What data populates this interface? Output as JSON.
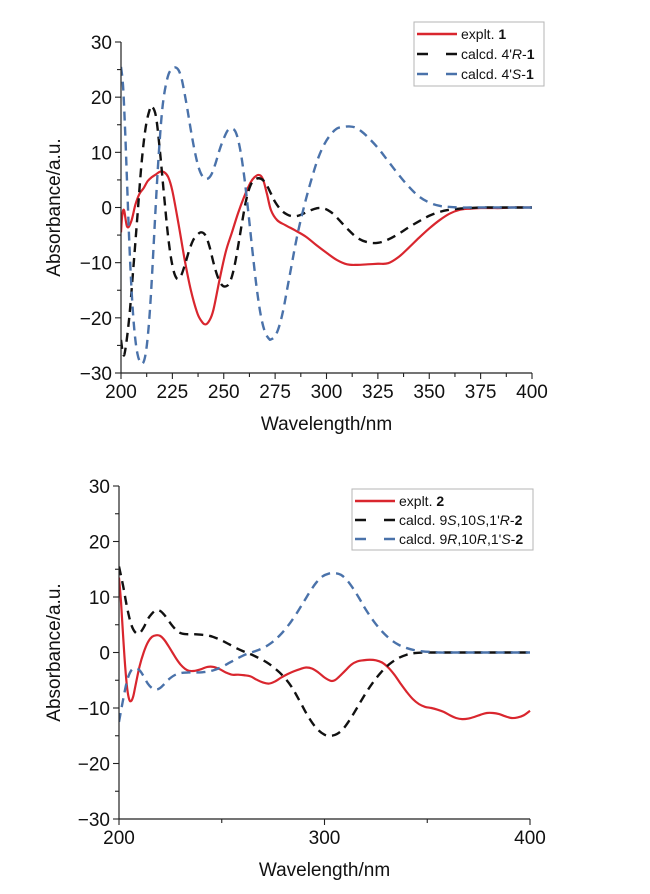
{
  "chart_data": [
    {
      "type": "line",
      "title": "",
      "xlabel": "Wavelength/nm",
      "ylabel": "Absorbance/a.u.",
      "xlim": [
        200,
        400
      ],
      "ylim": [
        -30,
        30
      ],
      "xticks": [
        200,
        225,
        250,
        275,
        300,
        325,
        350,
        375,
        400
      ],
      "xtick_labels": [
        "200",
        "225",
        "250",
        "275",
        "300",
        "325",
        "350",
        "375",
        "400"
      ],
      "xminor_step": 12.5,
      "yticks": [
        -30,
        -20,
        -10,
        0,
        10,
        20,
        30
      ],
      "ytick_labels": [
        "−30",
        "−20",
        "−10",
        "0",
        "10",
        "20",
        "30"
      ],
      "yminor_step": 5,
      "grid": false,
      "legend_position": "top-right",
      "series": [
        {
          "name": "expl",
          "legend": {
            "prefix": "explt. ",
            "parts": [
              {
                "t": "1",
                "b": true
              }
            ]
          },
          "color": "#d9262e",
          "style": "solid",
          "x": [
            200,
            200.6,
            201.5,
            203,
            205,
            207,
            209,
            211,
            213,
            215,
            217,
            219,
            221,
            223,
            225,
            228,
            231,
            234,
            237,
            239,
            241,
            243,
            245,
            248,
            251,
            254,
            257,
            260,
            263,
            265,
            267,
            269,
            271,
            273,
            276,
            280,
            285,
            290,
            295,
            300,
            305,
            310,
            315,
            320,
            325,
            330,
            335,
            340,
            345,
            350,
            355,
            360,
            365,
            370,
            375,
            380,
            385,
            390,
            395,
            400
          ],
          "y": [
            -4.5,
            -1.5,
            -0.5,
            -3.5,
            -2.5,
            0.5,
            2.5,
            3.5,
            4.8,
            5.5,
            6.0,
            6.5,
            6.4,
            5.5,
            3.0,
            -3.0,
            -9.5,
            -15.0,
            -19.0,
            -20.5,
            -21.2,
            -20.5,
            -18.5,
            -13.0,
            -8.0,
            -4.5,
            -1.0,
            2.0,
            4.5,
            5.5,
            5.9,
            5.2,
            2.5,
            -0.5,
            -2.3,
            -3.2,
            -4.2,
            -5.3,
            -6.8,
            -8.2,
            -9.5,
            -10.3,
            -10.4,
            -10.3,
            -10.2,
            -10.1,
            -9.0,
            -7.3,
            -5.5,
            -3.8,
            -2.3,
            -1.1,
            -0.4,
            -0.2,
            -0.1,
            -0.1,
            -0.1,
            0.0,
            0.0,
            0.0
          ]
        },
        {
          "name": "calcd-R",
          "legend": {
            "prefix": "calcd. 4'",
            "parts": [
              {
                "t": "R",
                "i": true
              },
              {
                "t": "-"
              },
              {
                "t": "1",
                "b": true
              }
            ]
          },
          "color": "#111111",
          "style": "dashed",
          "x": [
            200,
            201,
            202,
            204,
            206,
            208,
            210,
            212,
            214,
            215,
            217,
            219,
            221,
            223,
            225,
            227,
            229,
            231,
            233,
            235,
            237,
            239,
            241,
            243,
            245,
            247,
            249,
            251,
            253,
            255,
            257,
            259,
            261,
            263,
            265,
            267,
            269,
            271,
            273,
            275,
            278,
            281,
            284,
            287,
            290,
            293,
            296,
            299,
            302,
            305,
            310,
            315,
            320,
            325,
            330,
            335,
            340,
            345,
            350,
            355,
            360,
            365,
            370,
            375,
            380,
            385,
            390,
            395,
            400
          ],
          "y": [
            -24,
            -26.5,
            -26.0,
            -20.0,
            -11.0,
            -1.5,
            8.0,
            14.5,
            17.8,
            18.3,
            16.5,
            10.0,
            2.0,
            -5.5,
            -10.5,
            -12.8,
            -12.5,
            -10.5,
            -8.0,
            -6.0,
            -5.0,
            -4.5,
            -5.0,
            -7.0,
            -10.0,
            -12.5,
            -14.0,
            -14.3,
            -13.5,
            -11.0,
            -7.0,
            -2.5,
            1.5,
            4.0,
            5.0,
            5.3,
            5.0,
            4.0,
            2.5,
            1.0,
            -0.5,
            -1.3,
            -1.6,
            -1.4,
            -0.9,
            -0.4,
            -0.1,
            -0.2,
            -0.8,
            -1.8,
            -3.8,
            -5.5,
            -6.3,
            -6.4,
            -5.8,
            -4.8,
            -3.6,
            -2.5,
            -1.5,
            -0.8,
            -0.4,
            -0.2,
            -0.1,
            0.0,
            0.0,
            0.0,
            0.0,
            0.0,
            0.0
          ]
        },
        {
          "name": "calcd-S",
          "legend": {
            "prefix": "calcd. 4'",
            "parts": [
              {
                "t": "S",
                "i": true
              },
              {
                "t": "-"
              },
              {
                "t": "1",
                "b": true
              }
            ]
          },
          "color": "#4a72aa",
          "style": "dashed",
          "x": [
            200,
            201,
            202,
            203,
            204,
            205,
            206,
            207,
            208,
            209,
            210,
            211,
            212,
            213,
            214,
            215,
            216,
            217,
            218,
            219,
            220,
            221,
            222,
            223,
            224,
            225,
            226,
            227,
            228,
            229,
            230,
            232,
            234,
            236,
            238,
            240,
            242,
            244,
            246,
            248,
            250,
            252,
            254,
            256,
            258,
            260,
            262,
            264,
            266,
            268,
            270,
            272,
            273,
            275,
            277,
            279,
            281,
            283,
            285,
            287,
            290,
            293,
            296,
            299,
            302,
            305,
            308,
            311,
            314,
            317,
            320,
            325,
            330,
            335,
            340,
            345,
            350,
            355,
            360,
            365,
            370,
            375,
            380,
            385,
            390,
            395,
            400
          ],
          "y": [
            25.5,
            22.0,
            14.0,
            4.0,
            -6.0,
            -14.0,
            -20.0,
            -24.0,
            -26.5,
            -27.8,
            -28.3,
            -28.0,
            -26.5,
            -23.5,
            -19.0,
            -13.0,
            -6.0,
            1.0,
            7.5,
            13.0,
            17.5,
            20.5,
            22.5,
            24.0,
            24.8,
            25.2,
            25.4,
            25.3,
            24.9,
            24.0,
            22.5,
            18.5,
            14.0,
            10.0,
            7.0,
            5.5,
            5.2,
            6.0,
            8.0,
            10.5,
            12.5,
            14.0,
            14.3,
            13.5,
            10.5,
            5.5,
            -1.0,
            -8.0,
            -14.5,
            -19.5,
            -22.5,
            -23.8,
            -23.9,
            -23.3,
            -21.5,
            -18.5,
            -14.5,
            -10.5,
            -6.5,
            -3.0,
            1.5,
            5.5,
            9.0,
            11.5,
            13.2,
            14.3,
            14.6,
            14.7,
            14.5,
            13.8,
            12.8,
            10.8,
            8.4,
            6.0,
            3.8,
            2.0,
            0.9,
            0.3,
            0.1,
            0.0,
            0.0,
            0.0,
            0.0,
            0.0,
            0.0,
            0.0,
            0.0
          ]
        }
      ]
    },
    {
      "type": "line",
      "title": "",
      "xlabel": "Wavelength/nm",
      "ylabel": "Absorbance/a.u.",
      "xlim": [
        200,
        400
      ],
      "ylim": [
        -30,
        30
      ],
      "xticks": [
        200,
        300,
        400
      ],
      "xtick_labels": [
        "200",
        "300",
        "400"
      ],
      "xminor_step": 50,
      "yticks": [
        -30,
        -20,
        -10,
        0,
        10,
        20,
        30
      ],
      "ytick_labels": [
        "−30",
        "−20",
        "−10",
        "0",
        "10",
        "20",
        "30"
      ],
      "yminor_step": 5,
      "grid": false,
      "legend_position": "top-right",
      "series": [
        {
          "name": "expl",
          "legend": {
            "prefix": "explt. ",
            "parts": [
              {
                "t": "2",
                "b": true
              }
            ]
          },
          "color": "#d9262e",
          "style": "solid",
          "x": [
            200,
            201,
            202,
            203,
            204,
            205,
            206,
            207,
            208,
            210,
            212,
            214,
            216,
            218,
            220,
            222,
            224,
            226,
            228,
            230,
            232,
            234,
            237,
            240,
            243,
            246,
            249,
            252,
            255,
            258,
            261,
            264,
            267,
            270,
            273,
            276,
            279,
            282,
            285,
            288,
            291,
            294,
            297,
            300,
            303,
            305,
            307,
            310,
            313,
            316,
            319,
            322,
            325,
            328,
            331,
            334,
            337,
            340,
            343,
            346,
            349,
            352,
            355,
            358,
            361,
            364,
            367,
            370,
            373,
            376,
            379,
            382,
            385,
            388,
            391,
            394,
            397,
            400
          ],
          "y": [
            13.5,
            9.0,
            3.0,
            -2.5,
            -6.5,
            -8.5,
            -8.7,
            -7.8,
            -6.0,
            -2.5,
            0.0,
            1.8,
            2.8,
            3.1,
            3.0,
            2.3,
            1.2,
            0.0,
            -1.2,
            -2.2,
            -2.9,
            -3.3,
            -3.3,
            -3.0,
            -2.6,
            -2.6,
            -3.0,
            -3.6,
            -4.0,
            -4.0,
            -4.1,
            -4.3,
            -4.9,
            -5.4,
            -5.6,
            -5.2,
            -4.5,
            -3.9,
            -3.4,
            -3.0,
            -2.7,
            -2.9,
            -3.6,
            -4.5,
            -5.1,
            -5.0,
            -4.4,
            -3.3,
            -2.2,
            -1.6,
            -1.4,
            -1.3,
            -1.4,
            -1.8,
            -2.7,
            -4.0,
            -5.6,
            -7.1,
            -8.4,
            -9.3,
            -9.8,
            -10.0,
            -10.3,
            -10.7,
            -11.3,
            -11.8,
            -12.0,
            -11.9,
            -11.6,
            -11.2,
            -10.9,
            -10.9,
            -11.1,
            -11.5,
            -11.8,
            -11.7,
            -11.3,
            -10.5
          ]
        },
        {
          "name": "calcd-SSR",
          "legend": {
            "prefix": "calcd. 9",
            "parts": [
              {
                "t": "S",
                "i": true
              },
              {
                "t": ",10"
              },
              {
                "t": "S",
                "i": true
              },
              {
                "t": ",1'"
              },
              {
                "t": "R",
                "i": true
              },
              {
                "t": "-"
              },
              {
                "t": "2",
                "b": true
              }
            ]
          },
          "color": "#111111",
          "style": "dashed",
          "x": [
            200,
            202,
            204,
            206,
            208,
            210,
            212,
            214,
            216,
            218,
            220,
            222,
            224,
            226,
            228,
            230,
            233,
            236,
            240,
            244,
            248,
            252,
            256,
            260,
            264,
            268,
            272,
            276,
            280,
            284,
            288,
            292,
            296,
            300,
            303,
            306,
            309,
            312,
            315,
            318,
            321,
            324,
            327,
            330,
            333,
            336,
            340,
            344,
            348,
            352,
            356,
            360,
            365,
            370,
            375,
            380,
            385,
            390,
            395,
            400
          ],
          "y": [
            15.5,
            12.0,
            8.0,
            5.0,
            3.6,
            3.5,
            4.5,
            6.0,
            7.0,
            7.6,
            7.5,
            6.8,
            5.8,
            4.8,
            4.0,
            3.5,
            3.3,
            3.3,
            3.2,
            3.0,
            2.5,
            1.8,
            1.0,
            0.3,
            -0.3,
            -1.0,
            -1.8,
            -2.9,
            -4.3,
            -6.2,
            -8.8,
            -11.5,
            -13.6,
            -14.8,
            -15.0,
            -14.7,
            -13.8,
            -12.3,
            -10.5,
            -8.6,
            -6.8,
            -5.2,
            -3.8,
            -2.6,
            -1.7,
            -1.0,
            -0.4,
            -0.1,
            0.0,
            0.0,
            0.0,
            0.0,
            0.0,
            0.0,
            0.0,
            0.0,
            0.0,
            0.0,
            0.0,
            0.0
          ]
        },
        {
          "name": "calcd-RRS",
          "legend": {
            "prefix": "calcd. 9",
            "parts": [
              {
                "t": "R",
                "i": true
              },
              {
                "t": ",10"
              },
              {
                "t": "R",
                "i": true
              },
              {
                "t": ",1'"
              },
              {
                "t": "S",
                "i": true
              },
              {
                "t": "-"
              },
              {
                "t": "2",
                "b": true
              }
            ]
          },
          "color": "#4a72aa",
          "style": "dashed",
          "x": [
            200,
            202,
            204,
            206,
            208,
            210,
            212,
            214,
            216,
            218,
            220,
            222,
            224,
            227,
            230,
            234,
            238,
            242,
            246,
            250,
            254,
            258,
            262,
            266,
            270,
            274,
            278,
            282,
            286,
            290,
            293,
            296,
            299,
            302,
            305,
            308,
            311,
            314,
            317,
            320,
            324,
            328,
            332,
            336,
            340,
            344,
            348,
            352,
            356,
            360,
            365,
            370,
            375,
            380,
            385,
            390,
            395,
            400
          ],
          "y": [
            -12.5,
            -8.5,
            -5.0,
            -3.2,
            -2.9,
            -3.2,
            -4.3,
            -5.6,
            -6.4,
            -6.7,
            -6.4,
            -5.7,
            -4.9,
            -4.1,
            -3.7,
            -3.6,
            -3.6,
            -3.5,
            -3.2,
            -2.6,
            -1.8,
            -1.0,
            -0.3,
            0.2,
            0.8,
            1.7,
            3.0,
            4.7,
            6.8,
            9.2,
            11.0,
            12.6,
            13.7,
            14.2,
            14.3,
            14.0,
            13.0,
            11.5,
            9.7,
            7.8,
            5.6,
            3.8,
            2.4,
            1.4,
            0.8,
            0.4,
            0.2,
            0.1,
            0.0,
            0.0,
            0.0,
            0.0,
            0.0,
            0.0,
            0.0,
            0.0,
            0.0,
            0.0
          ]
        }
      ]
    }
  ]
}
